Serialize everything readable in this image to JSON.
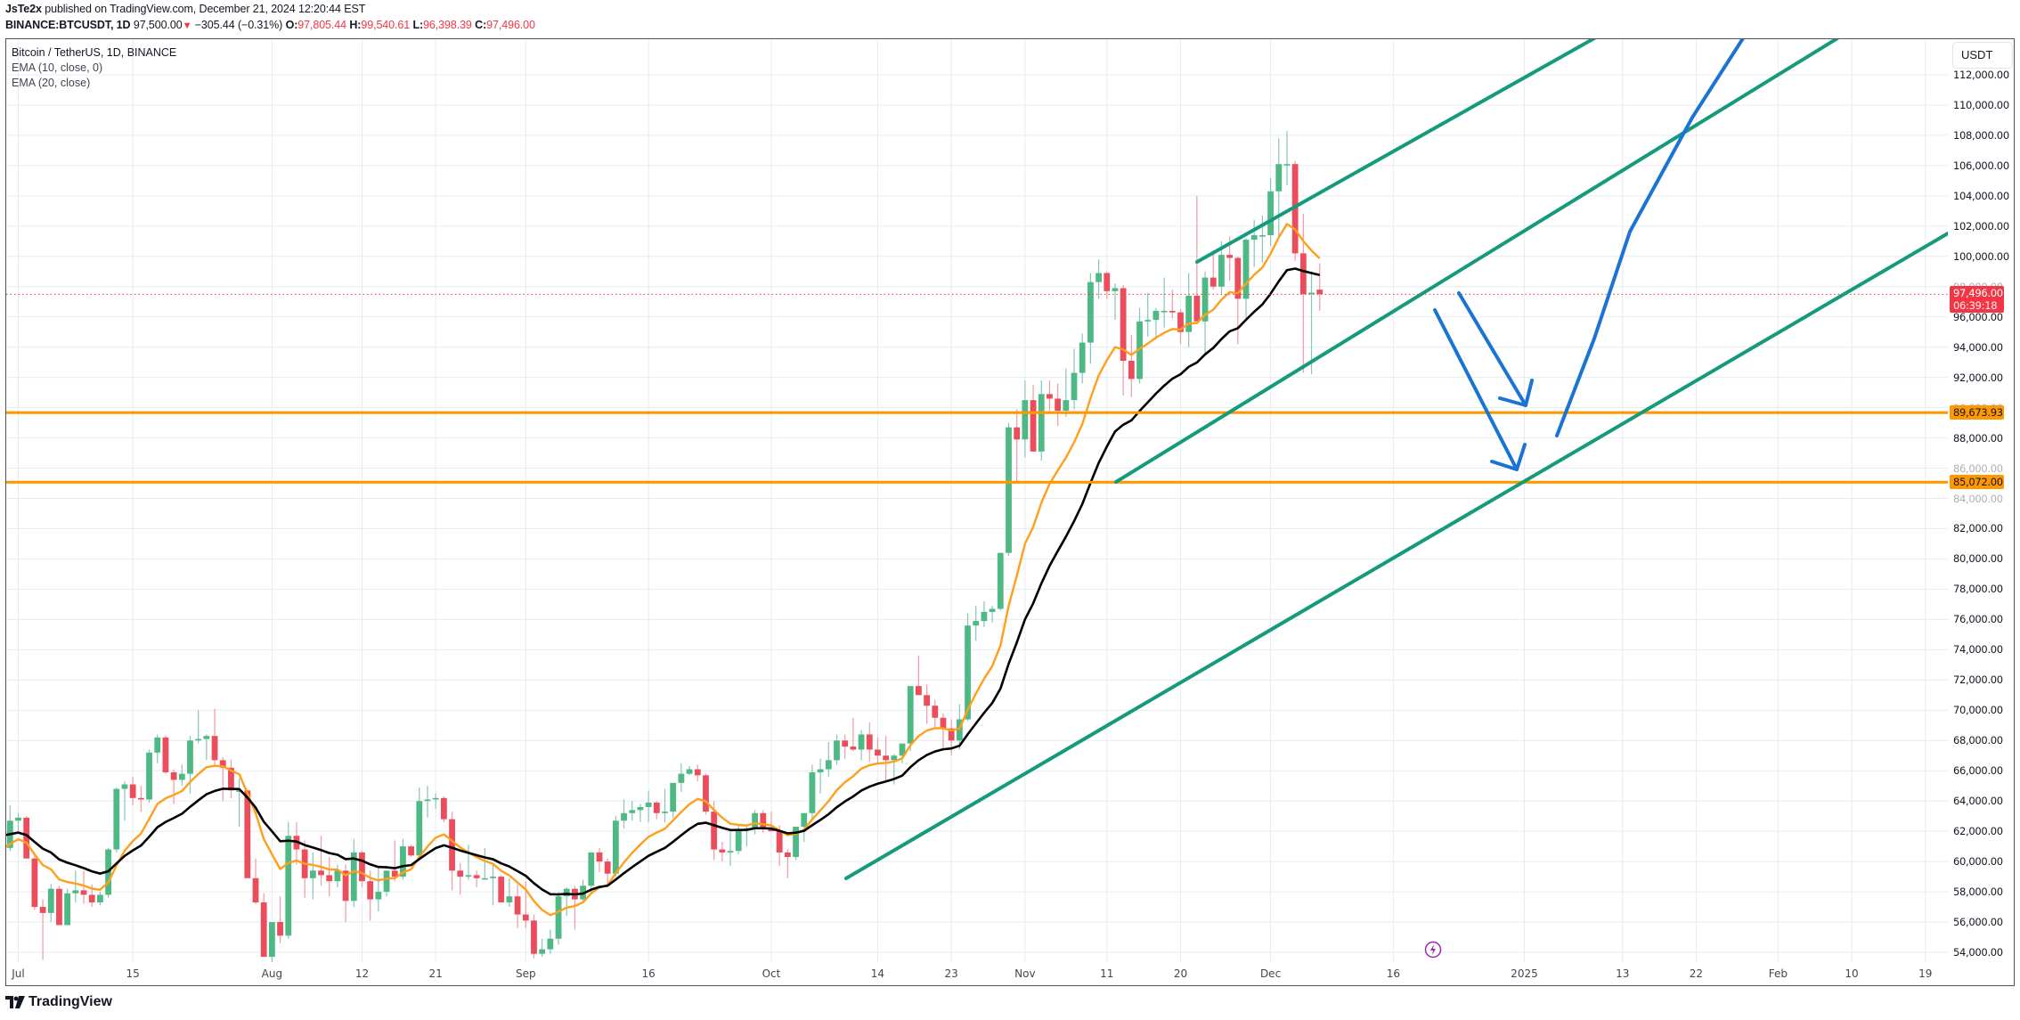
{
  "header": {
    "publisher": "JsTe2x",
    "published_text": "published on TradingView.com, December 21, 2024 12:20:44 EST",
    "symbol": "BINANCE:BTCUSDT, 1D",
    "last_price": "97,500.00",
    "change_arrow": "▼",
    "change": "−305.44 (−0.31%)",
    "o_label": "O:",
    "o_value": "97,805.44",
    "h_label": "H:",
    "h_value": "99,540.61",
    "l_label": "L:",
    "l_value": "96,398.39",
    "c_label": "C:",
    "c_value": "97,496.00"
  },
  "legend": {
    "series": "Bitcoin / TetherUS, 1D, BINANCE",
    "ema10": "EMA (10, close, 0)",
    "ema20": "EMA (20, close)"
  },
  "axis": {
    "currency": "USDT",
    "y_ticks": [
      "112,000.00",
      "110,000.00",
      "108,000.00",
      "106,000.00",
      "104,000.00",
      "102,000.00",
      "100,000.00",
      "98,000.00",
      "96,000.00",
      "94,000.00",
      "92,000.00",
      "90,000.00",
      "88,000.00",
      "86,000.00",
      "84,000.00",
      "82,000.00",
      "80,000.00",
      "78,000.00",
      "76,000.00",
      "74,000.00",
      "72,000.00",
      "70,000.00",
      "68,000.00",
      "66,000.00",
      "64,000.00",
      "62,000.00",
      "60,000.00",
      "58,000.00",
      "56,000.00",
      "54,000.00"
    ],
    "x_ticks": [
      "Jul",
      "15",
      "Aug",
      "12",
      "21",
      "Sep",
      "16",
      "Oct",
      "14",
      "23",
      "Nov",
      "11",
      "20",
      "Dec",
      "16",
      "2025",
      "13",
      "22",
      "Feb",
      "10",
      "19"
    ]
  },
  "price_tag": {
    "value": "97,496.00",
    "countdown": "06:39:18"
  },
  "levels": [
    {
      "label": "89,673.93",
      "price": 89673.93
    },
    {
      "label": "85,072.00",
      "price": 85072.0
    }
  ],
  "colors": {
    "up": "#4fb985",
    "down": "#eb4d5c",
    "ema10": "#ff9f1c",
    "ema20": "#000000",
    "channel": "#159a7c",
    "arrow": "#1b74d4",
    "level": "#ff9800",
    "grid": "#e6ecf1"
  },
  "branding": {
    "logo_text": "TradingView"
  },
  "chart_data": {
    "type": "candlestick",
    "title": "Bitcoin / TetherUS, 1D, BINANCE",
    "xlabel": "",
    "ylabel": "USDT",
    "ylim": [
      53400,
      113300
    ],
    "grid": true,
    "start_date": "2024-06-29",
    "ohlc": [
      [
        60300,
        61100,
        60000,
        60900
      ],
      [
        60900,
        63700,
        60700,
        62700
      ],
      [
        62700,
        63200,
        62000,
        62900
      ],
      [
        62900,
        63000,
        60800,
        60200
      ],
      [
        60200,
        60500,
        56800,
        57000
      ],
      [
        57000,
        57500,
        53500,
        56600
      ],
      [
        56600,
        58500,
        56000,
        58200
      ],
      [
        58200,
        58400,
        55800,
        55800
      ],
      [
        55800,
        58200,
        55800,
        57900
      ],
      [
        57900,
        59400,
        57300,
        58100
      ],
      [
        58100,
        59400,
        57200,
        57800
      ],
      [
        57800,
        58500,
        57000,
        57300
      ],
      [
        57300,
        58000,
        57100,
        57800
      ],
      [
        57800,
        60900,
        57600,
        60800
      ],
      [
        60800,
        64900,
        60600,
        64800
      ],
      [
        64800,
        65300,
        62700,
        65100
      ],
      [
        65100,
        65600,
        63700,
        64200
      ],
      [
        64200,
        65000,
        63300,
        64100
      ],
      [
        64100,
        67400,
        63900,
        67200
      ],
      [
        67200,
        68400,
        66500,
        68200
      ],
      [
        68200,
        68300,
        65800,
        65900
      ],
      [
        65900,
        66100,
        63800,
        65400
      ],
      [
        65400,
        66400,
        65000,
        65800
      ],
      [
        65800,
        68300,
        64500,
        68000
      ],
      [
        68000,
        70000,
        67800,
        68100
      ],
      [
        68100,
        68400,
        66700,
        68300
      ],
      [
        68300,
        70100,
        66300,
        66700
      ],
      [
        66700,
        66900,
        64000,
        66200
      ],
      [
        66200,
        66700,
        64200,
        64700
      ],
      [
        64700,
        65500,
        62300,
        64700
      ],
      [
        64700,
        64700,
        59000,
        58900
      ],
      [
        58900,
        60200,
        57200,
        57300
      ],
      [
        57300,
        57900,
        53800,
        53700
      ],
      [
        53700,
        56000,
        49500,
        56000
      ],
      [
        56000,
        57700,
        54600,
        55100
      ],
      [
        55100,
        62600,
        54900,
        61700
      ],
      [
        61700,
        62600,
        59800,
        60800
      ],
      [
        60800,
        61400,
        57600,
        58900
      ],
      [
        58900,
        60600,
        57500,
        59400
      ],
      [
        59400,
        61700,
        58400,
        59100
      ],
      [
        59100,
        60300,
        57700,
        58700
      ],
      [
        58700,
        59800,
        58300,
        59400
      ],
      [
        59400,
        59800,
        56000,
        57400
      ],
      [
        57400,
        61500,
        57000,
        60600
      ],
      [
        60600,
        60700,
        58300,
        58700
      ],
      [
        58700,
        59400,
        56100,
        57500
      ],
      [
        57500,
        59600,
        56700,
        58000
      ],
      [
        58000,
        58700,
        57700,
        59400
      ],
      [
        59400,
        61400,
        58700,
        59000
      ],
      [
        59000,
        61500,
        58800,
        61000
      ],
      [
        61000,
        61100,
        60300,
        60400
      ],
      [
        60400,
        64900,
        60300,
        64000
      ],
      [
        64000,
        65000,
        62900,
        64100
      ],
      [
        64100,
        64500,
        63500,
        64200
      ],
      [
        64200,
        64300,
        62600,
        62800
      ],
      [
        62800,
        63300,
        58100,
        59400
      ],
      [
        59400,
        59900,
        57800,
        59000
      ],
      [
        59000,
        61100,
        58800,
        59100
      ],
      [
        59100,
        59400,
        58300,
        58900
      ],
      [
        58900,
        60900,
        58900,
        58900
      ],
      [
        58900,
        59800,
        57100,
        59000
      ],
      [
        59000,
        59100,
        57800,
        57300
      ],
      [
        57300,
        58900,
        57000,
        57700
      ],
      [
        57700,
        58500,
        55600,
        56500
      ],
      [
        56500,
        58700,
        55600,
        56100
      ],
      [
        56100,
        56500,
        53600,
        53900
      ],
      [
        53900,
        54900,
        53700,
        54200
      ],
      [
        54200,
        55500,
        53900,
        54900
      ],
      [
        54900,
        58000,
        54500,
        57700
      ],
      [
        57700,
        58300,
        56400,
        58200
      ],
      [
        58200,
        58400,
        55500,
        57500
      ],
      [
        57500,
        58800,
        57300,
        58400
      ],
      [
        58400,
        60600,
        57800,
        60600
      ],
      [
        60600,
        60900,
        59300,
        60000
      ],
      [
        60000,
        60200,
        58500,
        59200
      ],
      [
        59200,
        63000,
        59000,
        62700
      ],
      [
        62700,
        64100,
        62200,
        63200
      ],
      [
        63200,
        64000,
        62700,
        63400
      ],
      [
        63400,
        63800,
        62600,
        63600
      ],
      [
        63600,
        64700,
        62600,
        63900
      ],
      [
        63900,
        64000,
        62800,
        63200
      ],
      [
        63200,
        64800,
        62600,
        63300
      ],
      [
        63300,
        64500,
        62900,
        65200
      ],
      [
        65200,
        66500,
        64600,
        65800
      ],
      [
        65800,
        66300,
        65700,
        66100
      ],
      [
        66100,
        66400,
        65300,
        65700
      ],
      [
        65700,
        65800,
        63100,
        63300
      ],
      [
        63300,
        64000,
        60100,
        60800
      ],
      [
        60800,
        61300,
        60000,
        60600
      ],
      [
        60600,
        62000,
        59700,
        60700
      ],
      [
        60700,
        62400,
        60500,
        62100
      ],
      [
        62100,
        62400,
        61000,
        62200
      ],
      [
        62200,
        63400,
        61800,
        63200
      ],
      [
        63200,
        63400,
        61900,
        62200
      ],
      [
        62200,
        63300,
        62000,
        62000
      ],
      [
        62000,
        62400,
        59700,
        60600
      ],
      [
        60600,
        60800,
        58900,
        60300
      ],
      [
        60300,
        62300,
        60100,
        62300
      ],
      [
        62300,
        62800,
        61300,
        63200
      ],
      [
        63200,
        66400,
        62800,
        65900
      ],
      [
        65900,
        66800,
        64500,
        66100
      ],
      [
        66100,
        67900,
        65600,
        66700
      ],
      [
        66700,
        68400,
        66400,
        68000
      ],
      [
        68000,
        68400,
        66800,
        67600
      ],
      [
        67600,
        69500,
        67300,
        67400
      ],
      [
        67400,
        68700,
        66700,
        68400
      ],
      [
        68400,
        69200,
        66600,
        67400
      ],
      [
        67400,
        68200,
        66500,
        67000
      ],
      [
        67000,
        68300,
        65300,
        66700
      ],
      [
        66700,
        67100,
        65100,
        67000
      ],
      [
        67000,
        67400,
        66500,
        67800
      ],
      [
        67800,
        71500,
        67300,
        71600
      ],
      [
        71600,
        73600,
        71400,
        71000
      ],
      [
        71000,
        71700,
        69100,
        70300
      ],
      [
        70300,
        70700,
        68800,
        69500
      ],
      [
        69500,
        69800,
        67500,
        68800
      ],
      [
        68800,
        69400,
        67000,
        68000
      ],
      [
        68000,
        70400,
        67400,
        69400
      ],
      [
        69400,
        76400,
        69300,
        75600
      ],
      [
        75600,
        76900,
        74600,
        75900
      ],
      [
        75900,
        77200,
        75500,
        76500
      ],
      [
        76500,
        76900,
        75800,
        76700
      ],
      [
        76700,
        80400,
        76600,
        80400
      ],
      [
        80400,
        89000,
        80200,
        88700
      ],
      [
        88700,
        89900,
        85000,
        87900
      ],
      [
        87900,
        91800,
        86700,
        90500
      ],
      [
        90500,
        91500,
        87100,
        87100
      ],
      [
        87100,
        91800,
        86500,
        90900
      ],
      [
        90900,
        91800,
        89800,
        90600
      ],
      [
        90600,
        91600,
        88800,
        89800
      ],
      [
        89800,
        92600,
        89400,
        90500
      ],
      [
        90500,
        93900,
        89900,
        92300
      ],
      [
        92300,
        94900,
        91600,
        94300
      ],
      [
        94300,
        98900,
        92900,
        98300
      ],
      [
        98300,
        99800,
        97200,
        98900
      ],
      [
        98900,
        99000,
        97200,
        97700
      ],
      [
        97700,
        98200,
        95800,
        97900
      ],
      [
        97900,
        98100,
        90800,
        93100
      ],
      [
        93100,
        94800,
        90700,
        91900
      ],
      [
        91900,
        96600,
        91600,
        95700
      ],
      [
        95700,
        97600,
        94700,
        95800
      ],
      [
        95800,
        96600,
        94500,
        96400
      ],
      [
        96400,
        98600,
        95300,
        96400
      ],
      [
        96400,
        97800,
        95900,
        96300
      ],
      [
        96300,
        96500,
        94200,
        95000
      ],
      [
        95000,
        98900,
        94000,
        97400
      ],
      [
        97400,
        104000,
        96600,
        95700
      ],
      [
        95700,
        99000,
        93600,
        98600
      ],
      [
        98600,
        100400,
        97800,
        98000
      ],
      [
        98000,
        101000,
        97500,
        100100
      ],
      [
        100100,
        101300,
        98400,
        99900
      ],
      [
        99900,
        100000,
        94200,
        97200
      ],
      [
        97200,
        101200,
        95800,
        101100
      ],
      [
        101100,
        102400,
        99300,
        101400
      ],
      [
        101400,
        102700,
        99600,
        101400
      ],
      [
        101400,
        105200,
        100700,
        104300
      ],
      [
        104300,
        107800,
        101200,
        106100
      ],
      [
        106100,
        108300,
        104700,
        106100
      ],
      [
        106100,
        106300,
        99700,
        100200
      ],
      [
        100200,
        102800,
        92300,
        97500
      ],
      [
        97500,
        99000,
        92200,
        97600
      ],
      [
        97800,
        99540,
        96400,
        97500
      ]
    ],
    "ema10_approx": "orange line",
    "ema20_approx": "black line",
    "horizontal_levels": [
      89673.93,
      85072.0
    ],
    "annotations": [
      "Ascending channel lines (teal)",
      "Blue arrows projecting decline toward 89,673.93 and 85,072.00, then rebound"
    ]
  }
}
